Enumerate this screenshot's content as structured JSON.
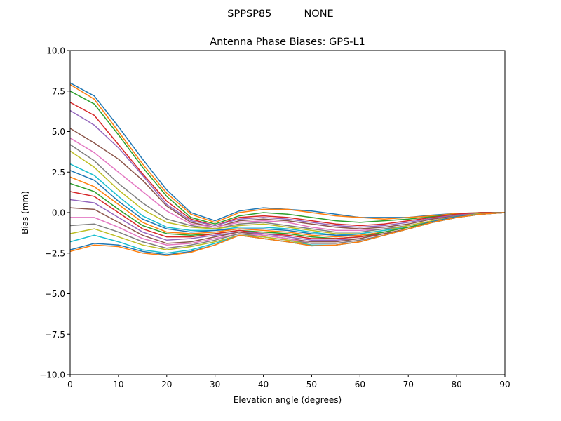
{
  "chart_data": {
    "type": "line",
    "suptitle": "SPPSP85          NONE",
    "title": "Antenna Phase Biases: GPS-L1",
    "xlabel": "Elevation angle (degrees)",
    "ylabel": "Bias (mm)",
    "xlim": [
      0,
      90
    ],
    "ylim": [
      -10,
      10
    ],
    "xticks": [
      0,
      10,
      20,
      30,
      40,
      50,
      60,
      70,
      80,
      90
    ],
    "xtick_labels": [
      "0",
      "10",
      "20",
      "30",
      "40",
      "50",
      "60",
      "70",
      "80",
      "90"
    ],
    "yticks": [
      -10,
      -7.5,
      -5,
      -2.5,
      0,
      2.5,
      5,
      7.5,
      10
    ],
    "ytick_labels": [
      "−10.0",
      "−7.5",
      "−5.0",
      "−2.5",
      "0.0",
      "2.5",
      "5.0",
      "7.5",
      "10.0"
    ],
    "grid": false,
    "colors": [
      "#1f77b4",
      "#ff7f0e",
      "#2ca02c",
      "#d62728",
      "#9467bd",
      "#8c564b",
      "#e377c2",
      "#7f7f7f",
      "#bcbd22",
      "#17becf"
    ],
    "x": [
      0,
      5,
      10,
      15,
      20,
      25,
      30,
      35,
      40,
      45,
      50,
      55,
      60,
      65,
      70,
      75,
      80,
      85,
      90
    ],
    "series": [
      {
        "values": [
          8.0,
          7.2,
          5.3,
          3.3,
          1.4,
          0.0,
          -0.5,
          0.1,
          0.3,
          0.2,
          0.1,
          -0.1,
          -0.3,
          -0.3,
          -0.3,
          -0.15,
          -0.05,
          0,
          0
        ]
      },
      {
        "values": [
          7.9,
          7.0,
          5.0,
          3.0,
          1.2,
          -0.1,
          -0.6,
          0.0,
          0.2,
          0.2,
          0.0,
          -0.2,
          -0.3,
          -0.4,
          -0.3,
          -0.2,
          -0.05,
          0,
          0
        ]
      },
      {
        "values": [
          7.5,
          6.7,
          4.8,
          2.8,
          1.0,
          -0.3,
          -0.7,
          -0.2,
          0.0,
          -0.1,
          -0.3,
          -0.5,
          -0.6,
          -0.5,
          -0.4,
          -0.25,
          -0.1,
          0,
          0
        ]
      },
      {
        "values": [
          6.8,
          6.0,
          4.2,
          2.4,
          0.7,
          -0.4,
          -0.8,
          -0.3,
          -0.2,
          -0.3,
          -0.5,
          -0.7,
          -0.8,
          -0.7,
          -0.5,
          -0.3,
          -0.1,
          0,
          0
        ]
      },
      {
        "values": [
          6.3,
          5.4,
          4.0,
          2.3,
          0.5,
          -0.5,
          -0.8,
          -0.4,
          -0.3,
          -0.4,
          -0.6,
          -0.8,
          -0.9,
          -0.8,
          -0.6,
          -0.35,
          -0.15,
          -0.05,
          0
        ]
      },
      {
        "values": [
          5.2,
          4.3,
          3.3,
          2.0,
          0.4,
          -0.6,
          -0.9,
          -0.5,
          -0.4,
          -0.5,
          -0.7,
          -0.9,
          -1.0,
          -0.9,
          -0.7,
          -0.4,
          -0.2,
          -0.05,
          0
        ]
      },
      {
        "values": [
          4.6,
          3.7,
          2.5,
          1.3,
          0.1,
          -0.7,
          -0.9,
          -0.6,
          -0.5,
          -0.6,
          -0.9,
          -1.1,
          -1.1,
          -1.0,
          -0.8,
          -0.5,
          -0.2,
          -0.05,
          0
        ]
      },
      {
        "values": [
          4.2,
          3.2,
          1.8,
          0.6,
          -0.4,
          -0.8,
          -1.0,
          -0.7,
          -0.6,
          -0.8,
          -1.0,
          -1.2,
          -1.2,
          -1.0,
          -0.8,
          -0.5,
          -0.2,
          -0.05,
          0
        ]
      },
      {
        "values": [
          3.8,
          2.8,
          1.4,
          0.2,
          -0.6,
          -0.9,
          -1.0,
          -0.8,
          -0.7,
          -0.9,
          -1.1,
          -1.3,
          -1.3,
          -1.1,
          -0.8,
          -0.5,
          -0.25,
          -0.05,
          0
        ]
      },
      {
        "values": [
          3.0,
          2.3,
          1.0,
          -0.2,
          -0.9,
          -1.1,
          -1.1,
          -0.9,
          -0.9,
          -1.0,
          -1.2,
          -1.4,
          -1.3,
          -1.1,
          -0.9,
          -0.55,
          -0.25,
          -0.1,
          0
        ]
      },
      {
        "values": [
          2.6,
          2.0,
          0.7,
          -0.4,
          -1.0,
          -1.2,
          -1.1,
          -1.0,
          -1.0,
          -1.1,
          -1.3,
          -1.4,
          -1.4,
          -1.2,
          -0.9,
          -0.55,
          -0.25,
          -0.1,
          0
        ]
      },
      {
        "values": [
          2.2,
          1.6,
          0.5,
          -0.6,
          -1.2,
          -1.3,
          -1.2,
          -1.0,
          -1.1,
          -1.2,
          -1.4,
          -1.5,
          -1.4,
          -1.2,
          -0.9,
          -0.6,
          -0.3,
          -0.1,
          0
        ]
      },
      {
        "values": [
          1.8,
          1.3,
          0.2,
          -0.8,
          -1.3,
          -1.4,
          -1.3,
          -1.1,
          -1.2,
          -1.3,
          -1.5,
          -1.6,
          -1.5,
          -1.2,
          -0.9,
          -0.6,
          -0.3,
          -0.1,
          0
        ]
      },
      {
        "values": [
          1.3,
          1.0,
          0.0,
          -1.0,
          -1.5,
          -1.5,
          -1.3,
          -1.1,
          -1.3,
          -1.4,
          -1.6,
          -1.6,
          -1.5,
          -1.3,
          -1.0,
          -0.6,
          -0.3,
          -0.1,
          0
        ]
      },
      {
        "values": [
          0.8,
          0.6,
          -0.3,
          -1.2,
          -1.7,
          -1.6,
          -1.4,
          -1.2,
          -1.3,
          -1.5,
          -1.7,
          -1.7,
          -1.6,
          -1.3,
          -1.0,
          -0.6,
          -0.3,
          -0.1,
          0
        ]
      },
      {
        "values": [
          0.3,
          0.2,
          -0.6,
          -1.4,
          -1.9,
          -1.8,
          -1.5,
          -1.2,
          -1.4,
          -1.6,
          -1.8,
          -1.8,
          -1.6,
          -1.3,
          -1.0,
          -0.6,
          -0.3,
          -0.1,
          0
        ]
      },
      {
        "values": [
          -0.3,
          -0.3,
          -0.9,
          -1.6,
          -2.0,
          -1.9,
          -1.6,
          -1.3,
          -1.4,
          -1.6,
          -1.9,
          -1.9,
          -1.7,
          -1.4,
          -1.0,
          -0.6,
          -0.3,
          -0.1,
          0
        ]
      },
      {
        "values": [
          -0.8,
          -0.7,
          -1.2,
          -1.8,
          -2.2,
          -2.0,
          -1.7,
          -1.3,
          -1.5,
          -1.7,
          -1.9,
          -1.9,
          -1.7,
          -1.4,
          -1.0,
          -0.6,
          -0.3,
          -0.1,
          0
        ]
      },
      {
        "values": [
          -1.3,
          -1.0,
          -1.5,
          -2.0,
          -2.3,
          -2.1,
          -1.8,
          -1.4,
          -1.5,
          -1.7,
          -2.0,
          -2.0,
          -1.8,
          -1.4,
          -1.0,
          -0.6,
          -0.3,
          -0.1,
          0
        ]
      },
      {
        "values": [
          -1.8,
          -1.4,
          -1.8,
          -2.3,
          -2.5,
          -2.3,
          -1.9,
          -1.4,
          -1.6,
          -1.8,
          -2.0,
          -2.0,
          -1.8,
          -1.4,
          -1.0,
          -0.6,
          -0.3,
          -0.1,
          0
        ]
      },
      {
        "values": [
          -2.3,
          -1.9,
          -2.0,
          -2.4,
          -2.6,
          -2.4,
          -2.0,
          -1.4,
          -1.6,
          -1.8,
          -2.05,
          -2.0,
          -1.8,
          -1.4,
          -1.0,
          -0.6,
          -0.3,
          -0.1,
          0
        ]
      },
      {
        "values": [
          -2.4,
          -2.0,
          -2.1,
          -2.5,
          -2.65,
          -2.45,
          -2.0,
          -1.4,
          -1.6,
          -1.8,
          -2.05,
          -2.0,
          -1.8,
          -1.4,
          -1.0,
          -0.6,
          -0.3,
          -0.1,
          0
        ]
      }
    ]
  }
}
